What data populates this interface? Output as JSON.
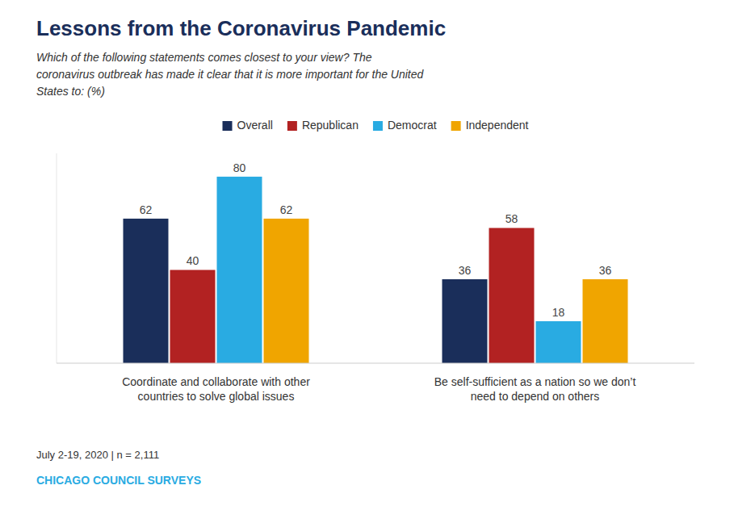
{
  "chart_data": {
    "type": "bar",
    "title": "Lessons from the Coronavirus Pandemic",
    "subtitle": "Which of the following statements comes closest to your view? The\ncoronavirus outbreak has made it clear that it is more important for the United\nStates to: (%)",
    "categories": [
      "Coordinate and collaborate with other\ncountries to solve global issues",
      "Be self-sufficient as a nation so we don’t\nneed to depend on others"
    ],
    "series": [
      {
        "name": "Overall",
        "color": "#1a2e5a",
        "values": [
          62,
          36
        ]
      },
      {
        "name": "Republican",
        "color": "#b22222",
        "values": [
          40,
          58
        ]
      },
      {
        "name": "Democrat",
        "color": "#29abe2",
        "values": [
          80,
          18
        ]
      },
      {
        "name": "Independent",
        "color": "#f0a500",
        "values": [
          62,
          36
        ]
      }
    ],
    "ylim": [
      0,
      90
    ],
    "tick_labels": "x",
    "data_labels": true,
    "legend": "top",
    "grid": false,
    "annotations": [
      "July 2-19, 2020 | n = 2,111",
      "CHICAGO COUNCIL SURVEYS"
    ]
  }
}
